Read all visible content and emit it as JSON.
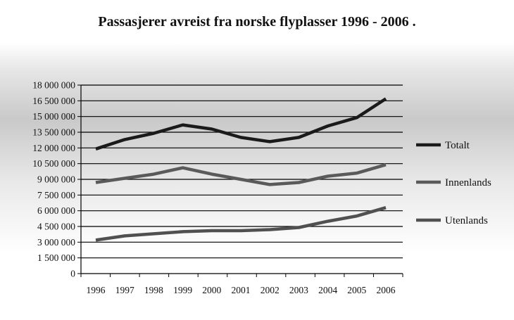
{
  "chart_data": {
    "type": "line",
    "title": "Passasjerer avreist fra norske flyplasser 1996 - 2006   .",
    "xlabel": "",
    "ylabel": "",
    "x": [
      "1996",
      "1997",
      "1998",
      "1999",
      "2000",
      "2001",
      "2002",
      "2003",
      "2004",
      "2005",
      "2006"
    ],
    "ylim": [
      0,
      18000000
    ],
    "yticks": [
      0,
      1500000,
      3000000,
      4500000,
      6000000,
      7500000,
      9000000,
      10500000,
      12000000,
      13500000,
      15000000,
      16500000,
      18000000
    ],
    "ytick_labels": [
      "0",
      "1 500 000",
      "3 000 000",
      "4 500 000",
      "6 000 000",
      "7 500 000",
      "9 000 000",
      "10 500 000",
      "12 000 000",
      "13 500 000",
      "15 000 000",
      "16 500 000",
      "18 000 000"
    ],
    "grid": true,
    "legend_position": "right",
    "series": [
      {
        "name": "Totalt",
        "color": "#1a1a1a",
        "values": [
          11900000,
          12800000,
          13400000,
          14200000,
          13800000,
          13000000,
          12600000,
          13000000,
          14100000,
          14900000,
          16700000
        ]
      },
      {
        "name": "Innenlands",
        "color": "#5a5a5a",
        "values": [
          8700000,
          9100000,
          9500000,
          10100000,
          9500000,
          9000000,
          8500000,
          8700000,
          9300000,
          9600000,
          10400000
        ]
      },
      {
        "name": "Utenlands",
        "color": "#505050",
        "values": [
          3200000,
          3600000,
          3800000,
          4000000,
          4100000,
          4100000,
          4200000,
          4400000,
          5000000,
          5500000,
          6300000
        ]
      }
    ]
  }
}
